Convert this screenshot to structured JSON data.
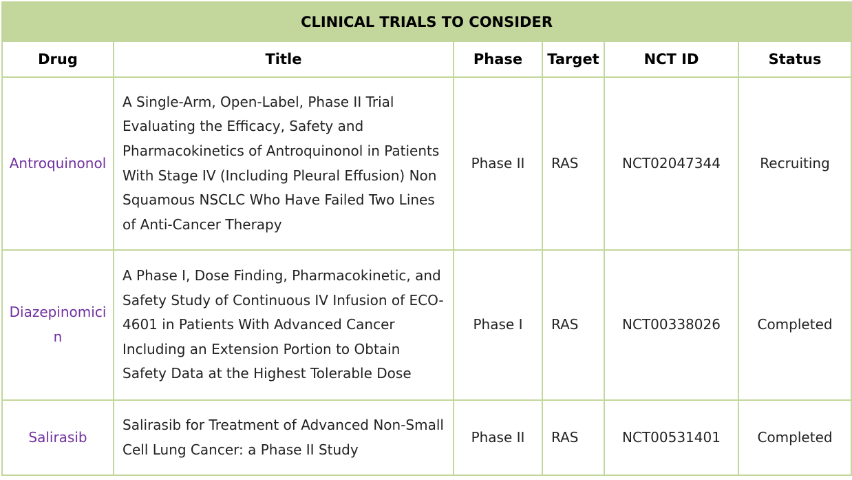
{
  "table": {
    "caption": "CLINICAL TRIALS TO CONSIDER",
    "headers": {
      "drug": "Drug",
      "title": "Title",
      "phase": "Phase",
      "target": "Target",
      "nct_id": "NCT ID",
      "status": "Status"
    },
    "rows": [
      {
        "drug": "Antroquinonol",
        "title": "A Single-Arm, Open-Label, Phase II Trial Evaluating the Efficacy, Safety and Pharmacokinetics of Antroquinonol in Patients With Stage IV (Including Pleural Effusion) Non Squamous NSCLC Who Have Failed Two Lines of Anti-Cancer Therapy",
        "phase": "Phase II",
        "target": "RAS",
        "nct_id": "NCT02047344",
        "status": "Recruiting"
      },
      {
        "drug": "Diazepinomicin",
        "title": "A Phase I, Dose Finding, Pharmacokinetic, and Safety Study of Continuous IV Infusion of ECO-4601 in Patients With Advanced Cancer Including an Extension Portion to Obtain Safety Data at the Highest Tolerable Dose",
        "phase": "Phase I",
        "target": "RAS",
        "nct_id": "NCT00338026",
        "status": "Completed"
      },
      {
        "drug": "Salirasib",
        "title": "Salirasib for Treatment of Advanced Non-Small Cell Lung Cancer: a Phase II Study",
        "phase": "Phase II",
        "target": "RAS",
        "nct_id": "NCT00531401",
        "status": "Completed"
      }
    ]
  },
  "colors": {
    "header_fill": "#c3d69b",
    "border": "#c3d69b",
    "drug_text": "#7030a0"
  }
}
